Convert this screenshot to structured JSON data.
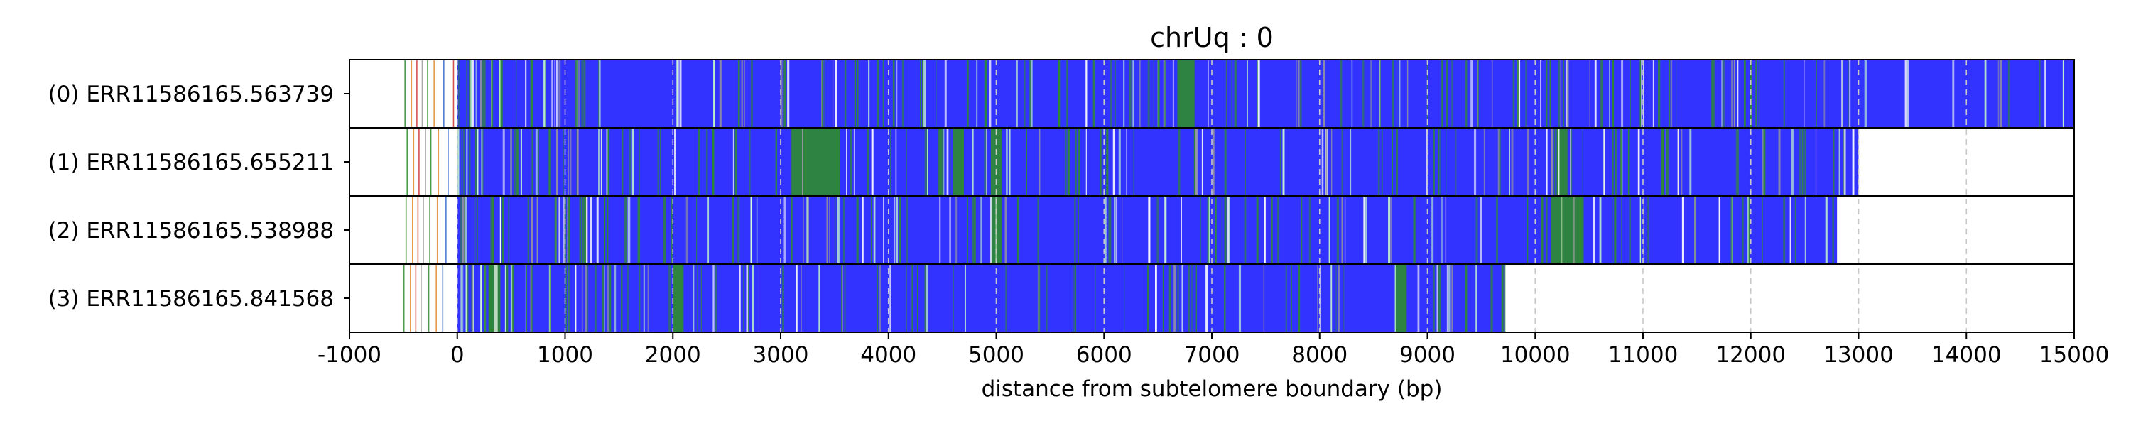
{
  "chart_data": {
    "type": "heatmap",
    "title": "chrUq : 0",
    "xlabel": "distance from subtelomere boundary (bp)",
    "ylabel": "",
    "xlim": [
      -1000,
      15000
    ],
    "xticks": [
      "-1000",
      "0",
      "1000",
      "2000",
      "3000",
      "4000",
      "5000",
      "6000",
      "7000",
      "8000",
      "9000",
      "10000",
      "11000",
      "12000",
      "13000",
      "14000",
      "15000"
    ],
    "grid": "vertical dashed at each 1000 bp",
    "colors": {
      "base": "#3333ff",
      "accent_green": "#2e8b2e",
      "accent_light": "#c8ffc8",
      "accent_gray": "#999999",
      "accent_pink": "#ff66cc",
      "frame": "#000000",
      "grid": "#c8c8c8"
    },
    "reads": [
      {
        "label": "(0) ERR11586165.563739",
        "start": 0,
        "end": 15000,
        "pre_marks": [
          -490,
          -430,
          -380,
          -330,
          -280,
          -220,
          -130,
          -40
        ],
        "green_blocks": [
          [
            6680,
            6840
          ]
        ]
      },
      {
        "label": "(1) ERR11586165.655211",
        "start": 0,
        "end": 13000,
        "pre_marks": [
          -470,
          -410,
          -360,
          -300,
          -250,
          -180,
          -90
        ],
        "green_blocks": [
          [
            3100,
            3550
          ],
          [
            4600,
            4700
          ],
          [
            4950,
            5050
          ],
          [
            10200,
            10300
          ]
        ]
      },
      {
        "label": "(2) ERR11586165.538988",
        "start": 0,
        "end": 12800,
        "pre_marks": [
          -480,
          -420,
          -370,
          -320,
          -260,
          -190,
          -110
        ],
        "green_blocks": [
          [
            4950,
            5050
          ],
          [
            10150,
            10450
          ]
        ]
      },
      {
        "label": "(3) ERR11586165.841568",
        "start": 0,
        "end": 9720,
        "pre_marks": [
          -500,
          -440,
          -390,
          -340,
          -270,
          -200,
          -140
        ],
        "green_blocks": [
          [
            300,
            400
          ],
          [
            2000,
            2100
          ],
          [
            8700,
            8800
          ]
        ]
      }
    ]
  }
}
